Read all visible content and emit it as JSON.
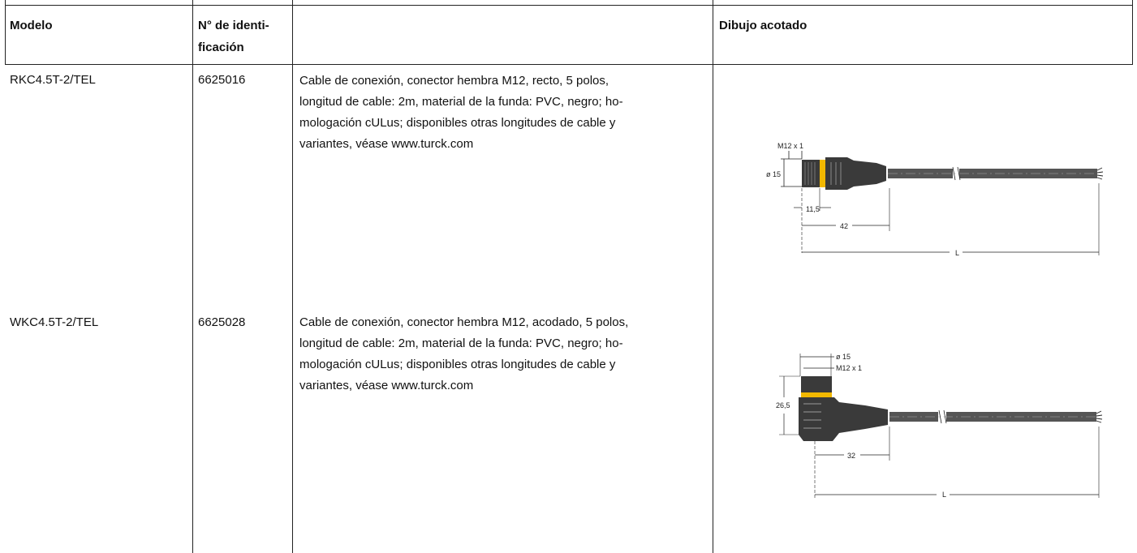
{
  "table": {
    "headers": {
      "model": "Modelo",
      "id_line1": "N° de identi-",
      "id_line2": "ficación",
      "description": "",
      "drawing": "Dibujo acotado"
    },
    "rows": [
      {
        "model": "RKC4.5T-2/TEL",
        "id": "6625016",
        "description_lines": [
          "Cable de conexión, conector hembra M12, recto, 5 polos,",
          "longitud de cable: 2m, material de la funda: PVC, negro; ho-",
          "mologación cULus; disponibles otras longitudes de cable y",
          "variantes, véase www.turck.com"
        ],
        "drawing_labels": {
          "thread": "M12 x 1",
          "diameter": "ø 15",
          "length_a": "11,5",
          "length_b": "42",
          "length_total": "L"
        }
      },
      {
        "model": "WKC4.5T-2/TEL",
        "id": "6625028",
        "description_lines": [
          "Cable de conexión, conector hembra M12, acodado, 5 polos,",
          "longitud de cable: 2m, material de la funda: PVC, negro; ho-",
          "mologación cULus; disponibles otras longitudes de cable y",
          "variantes, véase www.turck.com"
        ],
        "drawing_labels": {
          "diameter": "ø 15",
          "thread": "M12 x 1",
          "height": "26,5",
          "length_b": "32",
          "length_total": "L"
        }
      }
    ]
  },
  "colors": {
    "rule": "#222222",
    "connector_dark": "#3a3a3a",
    "ring_accent": "#f2b800",
    "cable": "#555555"
  }
}
